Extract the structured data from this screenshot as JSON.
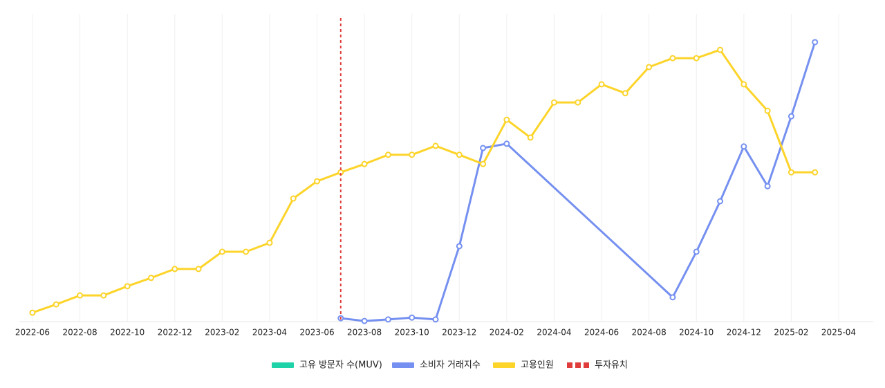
{
  "chart_data": {
    "type": "line",
    "categories": [
      "2022-06",
      null,
      "2022-08",
      null,
      "2022-10",
      null,
      "2022-12",
      null,
      "2023-02",
      null,
      "2023-04",
      null,
      "2023-06",
      null,
      "2023-08",
      null,
      "2023-10",
      null,
      "2023-12",
      null,
      "2024-02",
      null,
      "2024-04",
      null,
      "2024-06",
      null,
      "2024-08",
      null,
      "2024-10",
      null,
      "2024-12",
      null,
      "2025-02",
      null,
      "2025-04"
    ],
    "series": [
      {
        "name": "고유 방문자 수(MUV)",
        "color": "#1dd3a7",
        "values": [
          null,
          null,
          null,
          null,
          null,
          null,
          null,
          null,
          null,
          null,
          null,
          null,
          null,
          null,
          null,
          null,
          null,
          null,
          null,
          null,
          null,
          null,
          null,
          null,
          null,
          null,
          null,
          null,
          null,
          null,
          null,
          null,
          null,
          null,
          null
        ]
      },
      {
        "name": "소비자 거래지수",
        "color": "#7590f0",
        "values": [
          null,
          null,
          null,
          null,
          null,
          null,
          null,
          null,
          null,
          null,
          null,
          null,
          null,
          1.1,
          0.2,
          0.7,
          1.3,
          0.7,
          24.5,
          56.4,
          57.8,
          null,
          null,
          null,
          null,
          null,
          null,
          7.9,
          22.7,
          39.1,
          56.9,
          44,
          66.7,
          90.8,
          null
        ]
      },
      {
        "name": "고용인원",
        "color": "#fcd42a",
        "values": [
          2.9,
          5.6,
          8.5,
          8.5,
          11.5,
          14.2,
          17.1,
          17.1,
          22.7,
          22.7,
          25.6,
          40,
          45.6,
          48.5,
          51.2,
          54.2,
          54.2,
          57.1,
          54.2,
          51.2,
          65.6,
          59.8,
          71.2,
          71.2,
          77.1,
          74.2,
          82.7,
          85.6,
          85.6,
          88.3,
          77.1,
          68.5,
          48.5,
          48.5,
          null
        ]
      }
    ],
    "vline": {
      "name": "투자유치",
      "color": "#e03c3c",
      "index": 13
    },
    "ylim": [
      0,
      100
    ],
    "grid": "x",
    "connect_gaps": true
  }
}
